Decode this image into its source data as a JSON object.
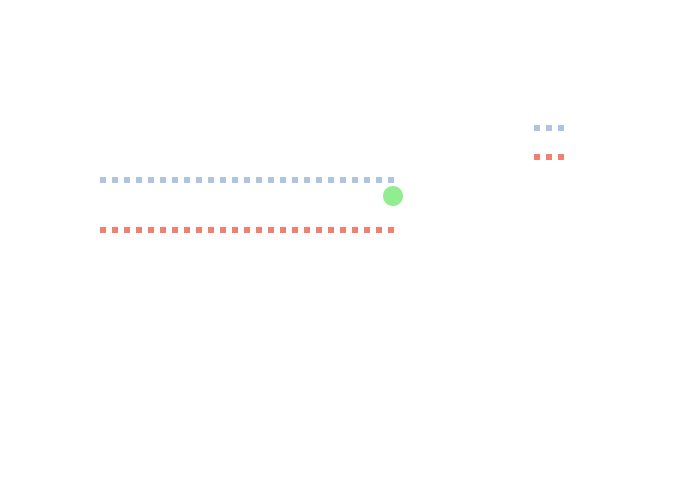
{
  "colors": {
    "background": "#ffffff",
    "line_blue": "#b0c4de",
    "line_red": "#f08070",
    "dot_green": "#90ee90"
  },
  "elements": {
    "lines": [
      {
        "name": "blue-dotted-line",
        "color_key": "line_blue",
        "style": "dotted"
      },
      {
        "name": "red-dotted-line",
        "color_key": "line_red",
        "style": "dotted"
      }
    ],
    "marker": {
      "name": "green-dot-marker",
      "color_key": "dot_green",
      "shape": "circle"
    },
    "legend": [
      {
        "name": "legend-swatch-blue",
        "color_key": "line_blue",
        "style": "dotted",
        "label": ""
      },
      {
        "name": "legend-swatch-red",
        "color_key": "line_red",
        "style": "dotted",
        "label": ""
      }
    ]
  }
}
